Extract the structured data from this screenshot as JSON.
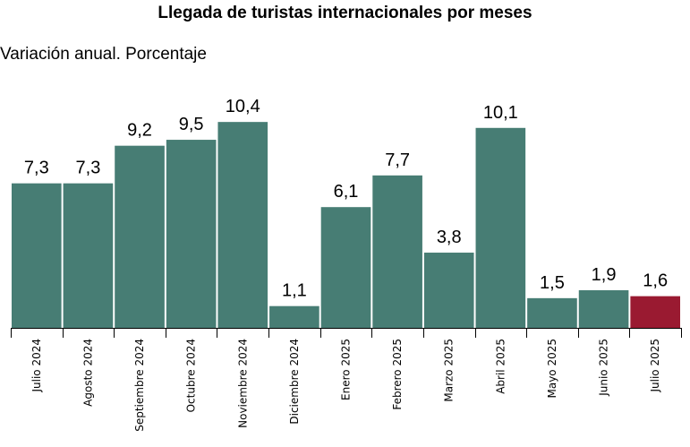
{
  "chart_data": {
    "type": "bar",
    "title": "Llegada de turistas internacionales por meses",
    "subtitle": "Variación anual. Porcentaje",
    "categories": [
      "Julio 2024",
      "Agosto 2024",
      "Septiembre 2024",
      "Octubre 2024",
      "Noviembre 2024",
      "Diciembre 2024",
      "Enero 2025",
      "Febrero 2025",
      "Marzo 2025",
      "Abril 2025",
      "Mayo 2025",
      "Junio 2025",
      "Julio 2025"
    ],
    "values": [
      7.3,
      7.3,
      9.2,
      9.5,
      10.4,
      1.1,
      6.1,
      7.7,
      3.8,
      10.1,
      1.5,
      1.9,
      1.6
    ],
    "value_labels": [
      "7,3",
      "7,3",
      "9,2",
      "9,5",
      "10,4",
      "1,1",
      "6,1",
      "7,7",
      "3,8",
      "10,1",
      "1,5",
      "1,9",
      "1,6"
    ],
    "xlabel": "",
    "ylabel": "",
    "ylim": [
      0,
      12
    ],
    "grid": false,
    "colors": {
      "bar": "#477d74",
      "highlight": "#9a1a31",
      "axis": "#000000"
    },
    "highlight_index": 12
  }
}
